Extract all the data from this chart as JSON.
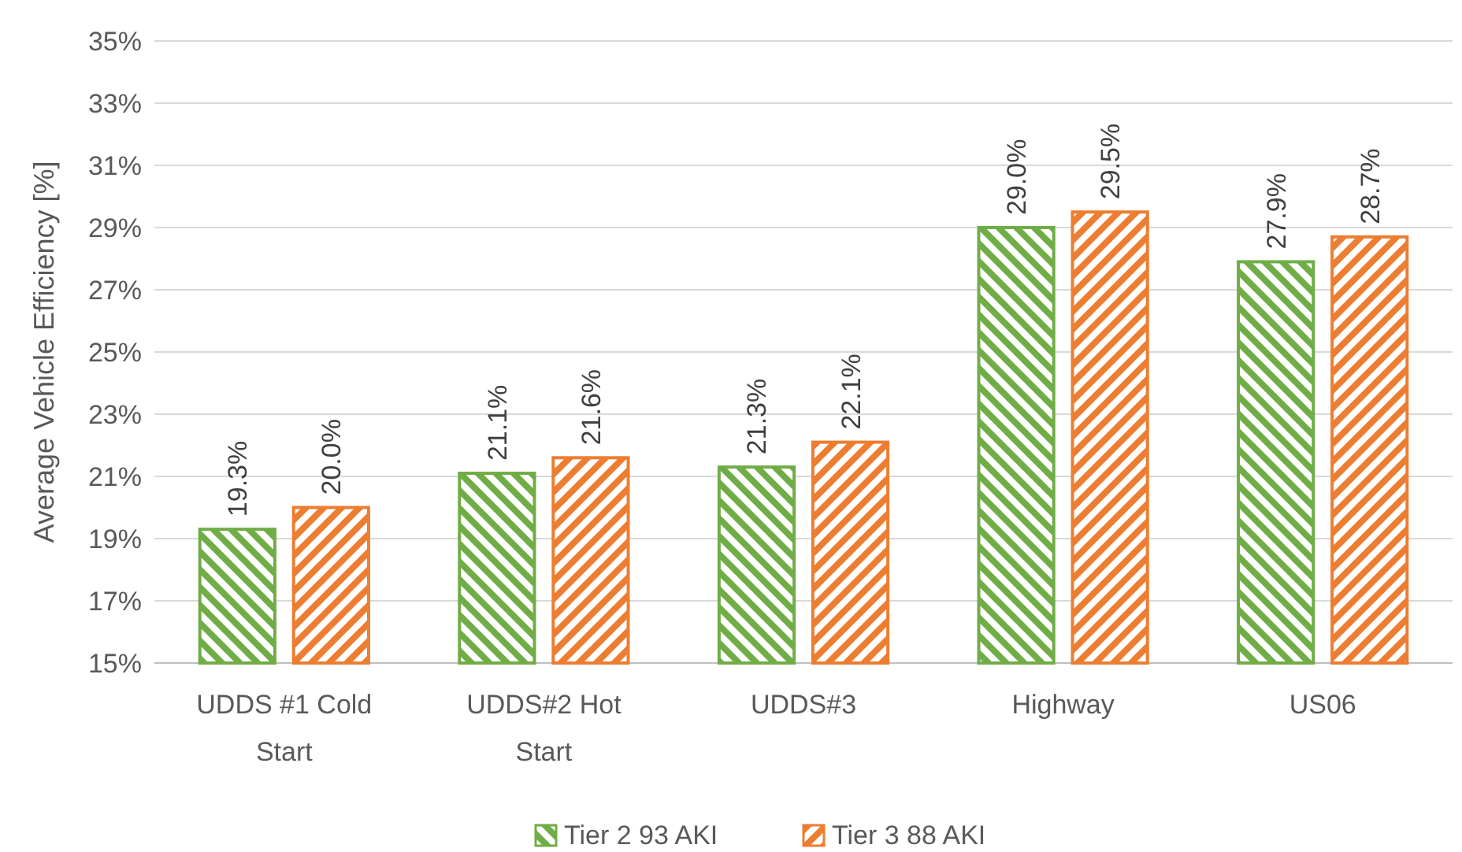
{
  "chart_data": {
    "type": "bar",
    "ylabel": "Average Vehicle Efficiency [%]",
    "categories": [
      "UDDS #1 Cold Start",
      "UDDS#2 Hot Start",
      "UDDS#3",
      "Highway",
      "US06"
    ],
    "series": [
      {
        "name": "Tier 2 93 AKI",
        "color": "#70ad47",
        "values": [
          19.3,
          21.1,
          21.3,
          29.0,
          27.9
        ],
        "value_labels": [
          "19.3%",
          "21.1%",
          "21.3%",
          "29.0%",
          "27.9%"
        ]
      },
      {
        "name": "Tier 3 88 AKI",
        "color": "#ed7d31",
        "values": [
          20.0,
          21.6,
          22.1,
          29.5,
          28.7
        ],
        "value_labels": [
          "20.0%",
          "21.6%",
          "22.1%",
          "29.5%",
          "28.7%"
        ]
      }
    ],
    "ylim": [
      15,
      35
    ],
    "yticks": [
      {
        "value": 15,
        "label": "15%"
      },
      {
        "value": 17,
        "label": "17%"
      },
      {
        "value": 19,
        "label": "19%"
      },
      {
        "value": 21,
        "label": "21%"
      },
      {
        "value": 23,
        "label": "23%"
      },
      {
        "value": 25,
        "label": "25%"
      },
      {
        "value": 27,
        "label": "27%"
      },
      {
        "value": 29,
        "label": "29%"
      },
      {
        "value": 31,
        "label": "31%"
      },
      {
        "value": 33,
        "label": "33%"
      },
      {
        "value": 35,
        "label": "35%"
      }
    ],
    "grid": "y",
    "legend": "bottom"
  }
}
